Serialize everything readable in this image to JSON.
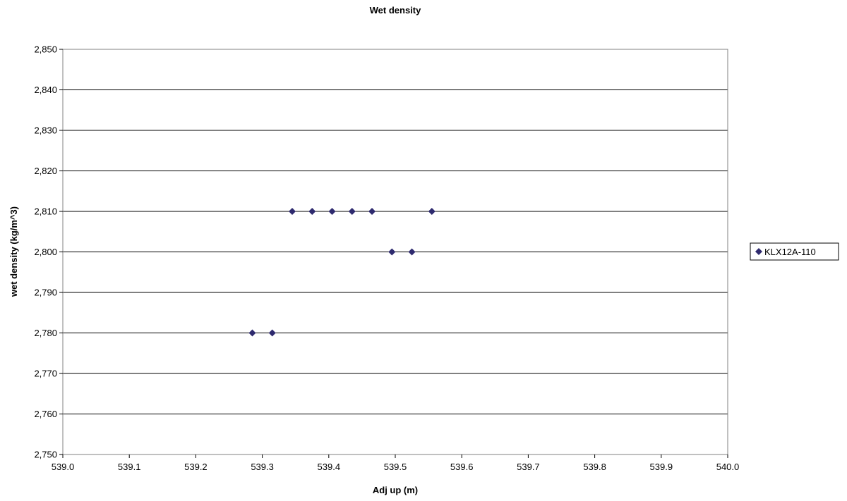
{
  "chart_data": {
    "type": "scatter",
    "title": "Wet density",
    "xlabel": "Adj up (m)",
    "ylabel": "wet density (kg/m^3)",
    "xlim": [
      539.0,
      540.0
    ],
    "ylim": [
      2750,
      2850
    ],
    "xticks": [
      "539.0",
      "539.1",
      "539.2",
      "539.3",
      "539.4",
      "539.5",
      "539.6",
      "539.7",
      "539.8",
      "539.9",
      "540.0"
    ],
    "yticks": [
      "2,750",
      "2,760",
      "2,770",
      "2,780",
      "2,790",
      "2,800",
      "2,810",
      "2,820",
      "2,830",
      "2,840",
      "2,850"
    ],
    "grid": "horizontal",
    "legend": "right",
    "series": [
      {
        "name": "KLX12A-110",
        "color": "#2e2a6e",
        "marker": "diamond",
        "x": [
          539.285,
          539.315,
          539.345,
          539.375,
          539.405,
          539.435,
          539.465,
          539.495,
          539.525,
          539.555
        ],
        "y": [
          2780,
          2780,
          2810,
          2810,
          2810,
          2810,
          2810,
          2800,
          2800,
          2810
        ]
      }
    ]
  }
}
